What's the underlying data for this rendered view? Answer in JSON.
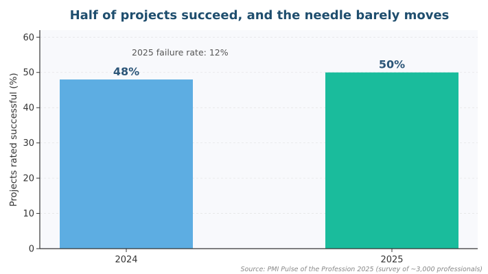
{
  "chart_data": {
    "type": "bar",
    "title": "Half of projects succeed, and the needle barely moves",
    "ylabel": "Projects rated successful (%)",
    "xlabel": "",
    "categories": [
      "2024",
      "2025"
    ],
    "values": [
      48,
      50
    ],
    "data_labels": [
      "48%",
      "50%"
    ],
    "ylim": [
      0,
      62
    ],
    "yticks": [
      0,
      10,
      20,
      30,
      40,
      50,
      60
    ],
    "bar_colors": [
      "#5dade2",
      "#1abc9c"
    ],
    "grid": true,
    "annotation": "2025 failure rate: 12%",
    "source": "Source: PMI Pulse of the Profession 2025 (survey of ~3,000 professionals)",
    "colors": {
      "title": "#1f4e6e",
      "data_label": "#2b5578",
      "axis": "#333333",
      "grid": "#e6e6e6",
      "plot_bg": "#f8f9fc",
      "source": "#888888",
      "annotation": "#555555"
    }
  }
}
